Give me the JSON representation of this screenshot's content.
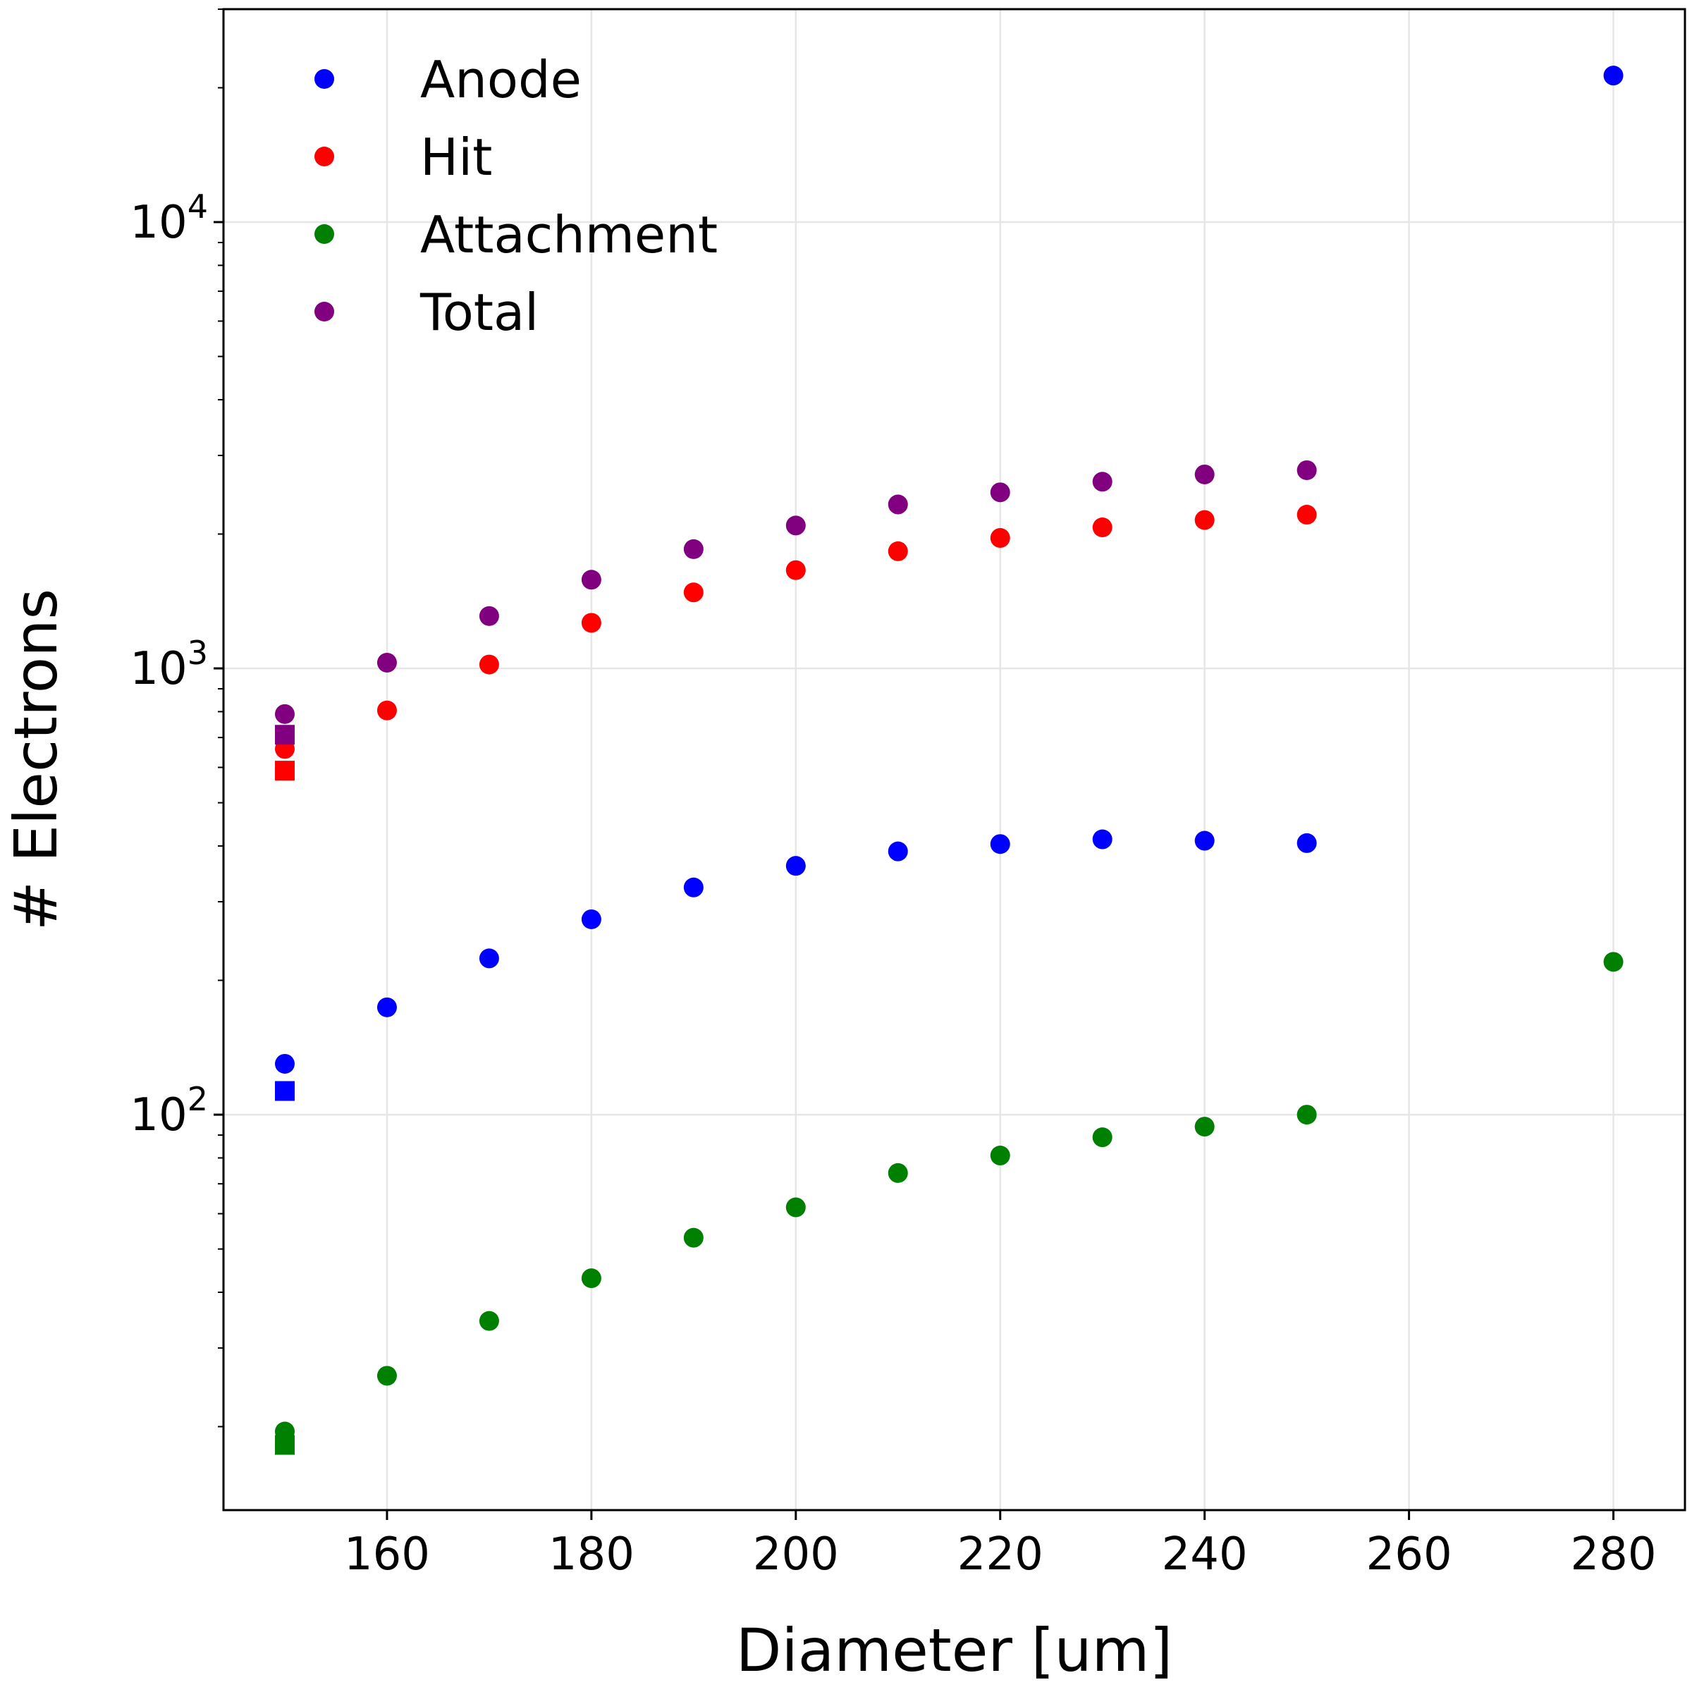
{
  "chart_data": {
    "type": "scatter",
    "xlabel": "Diameter [um]",
    "ylabel": "# Electrons",
    "xlim": [
      144,
      287
    ],
    "ylim": [
      13,
      30000
    ],
    "yscale": "log",
    "grid": true,
    "legend_position": "top-left",
    "xticks": [
      {
        "value": 160,
        "label": "160"
      },
      {
        "value": 180,
        "label": "180"
      },
      {
        "value": 200,
        "label": "200"
      },
      {
        "value": 220,
        "label": "220"
      },
      {
        "value": 240,
        "label": "240"
      },
      {
        "value": 260,
        "label": "260"
      },
      {
        "value": 280,
        "label": "280"
      }
    ],
    "yticks": [
      {
        "value": 100,
        "base": "10",
        "exp": "2"
      },
      {
        "value": 1000,
        "base": "10",
        "exp": "3"
      },
      {
        "value": 10000,
        "base": "10",
        "exp": "4"
      }
    ],
    "series": [
      {
        "name": "Anode",
        "color": "#0000ff",
        "points": [
          [
            150,
            130
          ],
          [
            160,
            174
          ],
          [
            170,
            224
          ],
          [
            180,
            274
          ],
          [
            190,
            323
          ],
          [
            200,
            361
          ],
          [
            210,
            389
          ],
          [
            220,
            404
          ],
          [
            230,
            414
          ],
          [
            240,
            411
          ],
          [
            250,
            406
          ],
          [
            280,
            21300
          ]
        ],
        "square_points": [
          [
            150,
            113
          ]
        ]
      },
      {
        "name": "Hit",
        "color": "#ff0000",
        "points": [
          [
            150,
            660
          ],
          [
            160,
            805
          ],
          [
            170,
            1020
          ],
          [
            180,
            1265
          ],
          [
            190,
            1480
          ],
          [
            200,
            1660
          ],
          [
            210,
            1830
          ],
          [
            220,
            1960
          ],
          [
            230,
            2070
          ],
          [
            240,
            2150
          ],
          [
            250,
            2210
          ]
        ],
        "square_points": [
          [
            150,
            590
          ]
        ]
      },
      {
        "name": "Attachment",
        "color": "#008000",
        "points": [
          [
            150,
            19.5
          ],
          [
            160,
            26
          ],
          [
            170,
            34.5
          ],
          [
            180,
            43
          ],
          [
            190,
            53
          ],
          [
            200,
            62
          ],
          [
            210,
            74
          ],
          [
            220,
            81
          ],
          [
            230,
            89
          ],
          [
            240,
            94
          ],
          [
            250,
            100
          ],
          [
            280,
            220
          ]
        ],
        "square_points": [
          [
            150,
            18.2
          ]
        ]
      },
      {
        "name": "Total",
        "color": "#800080",
        "points": [
          [
            150,
            790
          ],
          [
            160,
            1030
          ],
          [
            170,
            1310
          ],
          [
            180,
            1580
          ],
          [
            190,
            1850
          ],
          [
            200,
            2090
          ],
          [
            210,
            2330
          ],
          [
            220,
            2480
          ],
          [
            230,
            2620
          ],
          [
            240,
            2720
          ],
          [
            250,
            2780
          ]
        ],
        "square_points": [
          [
            150,
            710
          ]
        ]
      }
    ]
  }
}
